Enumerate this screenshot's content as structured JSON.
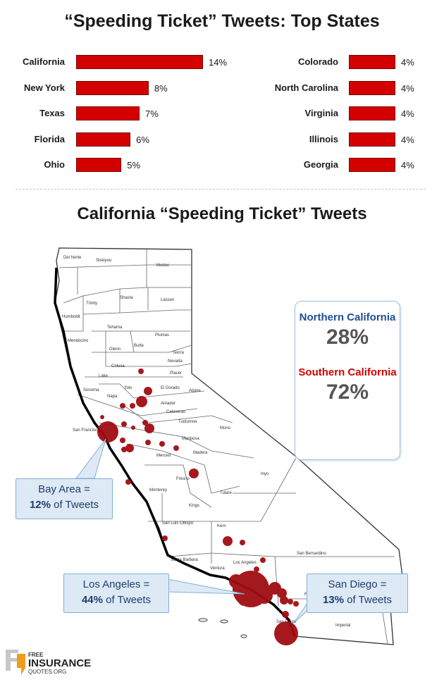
{
  "chart_data": [
    {
      "type": "bar",
      "title": "“Speeding Ticket” Tweets:  Top States",
      "orientation": "horizontal",
      "unit": "%",
      "groups": [
        {
          "categories": [
            "California",
            "New York",
            "Texas",
            "Florida",
            "Ohio"
          ],
          "values": [
            14,
            8,
            7,
            6,
            5
          ]
        },
        {
          "categories": [
            "Colorado",
            "North Carolina",
            "Virginia",
            "Illinois",
            "Georgia"
          ],
          "values": [
            4,
            4,
            4,
            4,
            4
          ]
        }
      ]
    },
    {
      "type": "map",
      "title": "California “Speeding Ticket” Tweets",
      "regions": [
        {
          "name": "Northern California",
          "percent": "28%",
          "color": "#1f4e96"
        },
        {
          "name": "Southern California",
          "percent": "72%",
          "color": "#d40000"
        }
      ],
      "callouts": [
        {
          "area": "Bay Area =",
          "value": "12%",
          "suffix": " of Tweets"
        },
        {
          "area": "Los Angeles =",
          "value": "44%",
          "suffix": " of Tweets"
        },
        {
          "area": "San Diego =",
          "value": "13%",
          "suffix": " of Tweets"
        }
      ],
      "county_labels": [
        "Del Norte",
        "Siskiyou",
        "Modoc",
        "Humboldt",
        "Trinity",
        "Shasta",
        "Lassen",
        "Tehama",
        "Plumas",
        "Mendocino",
        "Glenn",
        "Butte",
        "Sierra",
        "Nevada",
        "Colusa",
        "Lake",
        "Placer",
        "Yolo",
        "El Dorado",
        "Sonoma",
        "Napa",
        "Amador",
        "Alpine",
        "Calaveras",
        "Tuolumne",
        "Mono",
        "San Francisco",
        "Mariposa",
        "Madera",
        "Merced",
        "Fresno",
        "Inyo",
        "Monterey",
        "Tulare",
        "Kings",
        "Kern",
        "San Luis Obispo",
        "Santa Barbara",
        "Ventura",
        "Los Angeles",
        "San Bernardino",
        "Riverside",
        "Imperial",
        "San Diego"
      ],
      "marker_color": "#a00d12"
    }
  ],
  "logo": {
    "line1": "FREE",
    "line2": "INSURANCE",
    "line3": "QUOTES.ORG"
  }
}
